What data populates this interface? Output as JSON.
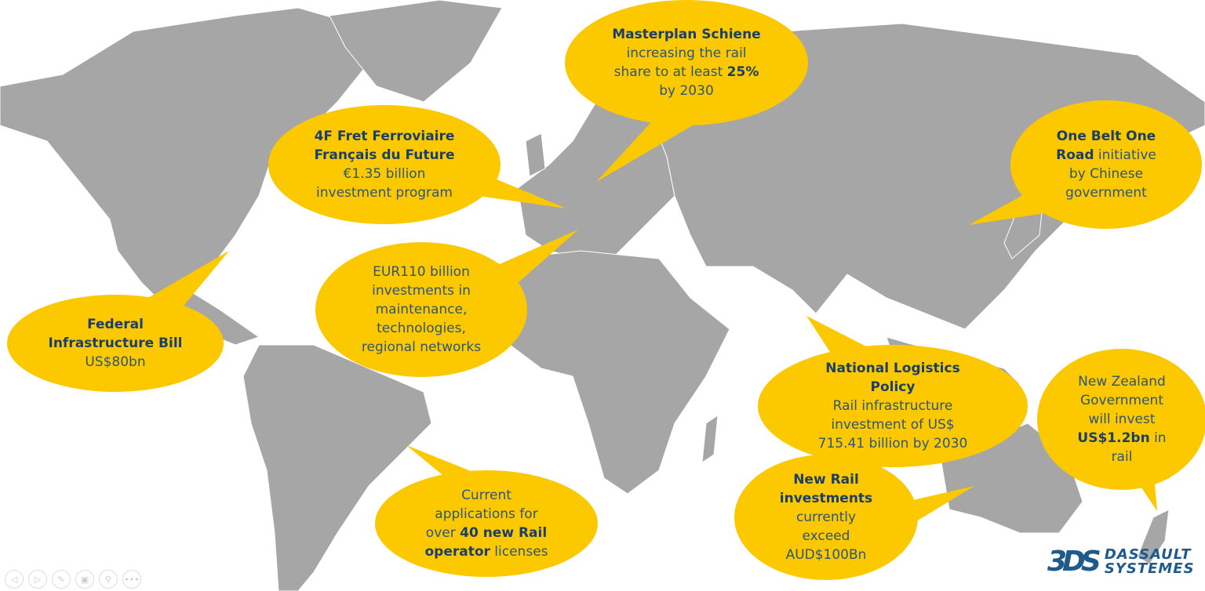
{
  "colors": {
    "land": "#a6a6a6",
    "borders": "#ffffff",
    "bubble": "#fcc800",
    "text": "#2f5576",
    "bold_text": "#1b3f66",
    "logo": "#1e5a8a"
  },
  "bubbles": [
    {
      "id": "masterplan-schiene",
      "lines": [
        [
          {
            "t": "Masterplan Schiene",
            "b": true
          }
        ],
        [
          {
            "t": "increasing the rail"
          }
        ],
        [
          {
            "t": "share to at least "
          },
          {
            "t": "25%",
            "b": true
          }
        ],
        [
          {
            "t": "by 2030"
          }
        ]
      ]
    },
    {
      "id": "4f-fret",
      "lines": [
        [
          {
            "t": "4F Fret Ferroviaire",
            "b": true
          }
        ],
        [
          {
            "t": "Français du Future",
            "b": true
          }
        ],
        [
          {
            "t": "€1.35 billion"
          }
        ],
        [
          {
            "t": "investment program"
          }
        ]
      ]
    },
    {
      "id": "one-belt-one-road",
      "lines": [
        [
          {
            "t": "One Belt One",
            "b": true
          }
        ],
        [
          {
            "t": "Road",
            "b": true
          },
          {
            "t": " initiative"
          }
        ],
        [
          {
            "t": "by Chinese"
          }
        ],
        [
          {
            "t": "government"
          }
        ]
      ]
    },
    {
      "id": "eur110",
      "lines": [
        [
          {
            "t": "EUR110 billion"
          }
        ],
        [
          {
            "t": "investments in"
          }
        ],
        [
          {
            "t": "maintenance,"
          }
        ],
        [
          {
            "t": "technologies,"
          }
        ],
        [
          {
            "t": "regional networks"
          }
        ]
      ]
    },
    {
      "id": "federal-infrastructure",
      "lines": [
        [
          {
            "t": "Federal",
            "b": true
          }
        ],
        [
          {
            "t": "Infrastructure Bill",
            "b": true
          }
        ],
        [
          {
            "t": "US$80bn"
          }
        ]
      ]
    },
    {
      "id": "national-logistics",
      "lines": [
        [
          {
            "t": "National Logistics",
            "b": true
          }
        ],
        [
          {
            "t": "Policy",
            "b": true
          }
        ],
        [
          {
            "t": "Rail infrastructure"
          }
        ],
        [
          {
            "t": "investment of US$"
          }
        ],
        [
          {
            "t": "715.41 billion by 2030"
          }
        ]
      ]
    },
    {
      "id": "new-zealand",
      "lines": [
        [
          {
            "t": "New Zealand"
          }
        ],
        [
          {
            "t": "Government"
          }
        ],
        [
          {
            "t": "will invest"
          }
        ],
        [
          {
            "t": "US$1.2bn",
            "b": true
          },
          {
            "t": " in"
          }
        ],
        [
          {
            "t": "rail"
          }
        ]
      ]
    },
    {
      "id": "current-applications",
      "lines": [
        [
          {
            "t": "Current"
          }
        ],
        [
          {
            "t": "applications for"
          }
        ],
        [
          {
            "t": "over "
          },
          {
            "t": "40 new Rail",
            "b": true
          }
        ],
        [
          {
            "t": "operator",
            "b": true
          },
          {
            "t": " licenses"
          }
        ]
      ]
    },
    {
      "id": "new-rail-investments",
      "lines": [
        [
          {
            "t": "New Rail",
            "b": true
          }
        ],
        [
          {
            "t": "investments",
            "b": true
          }
        ],
        [
          {
            "t": "currently"
          }
        ],
        [
          {
            "t": "exceed"
          }
        ],
        [
          {
            "t": "AUD$100Bn"
          }
        ]
      ]
    }
  ],
  "controls": [
    {
      "icon": "previous-icon",
      "glyph": "◁"
    },
    {
      "icon": "next-icon",
      "glyph": "▷"
    },
    {
      "icon": "pen-icon",
      "glyph": "✎"
    },
    {
      "icon": "slides-icon",
      "glyph": "▣"
    },
    {
      "icon": "zoom-icon",
      "glyph": "⚲"
    },
    {
      "icon": "more-icon",
      "glyph": "•••"
    }
  ],
  "logo": {
    "mark": "3DS",
    "line1": "DASSAULT",
    "line2": "SYSTEMES"
  }
}
